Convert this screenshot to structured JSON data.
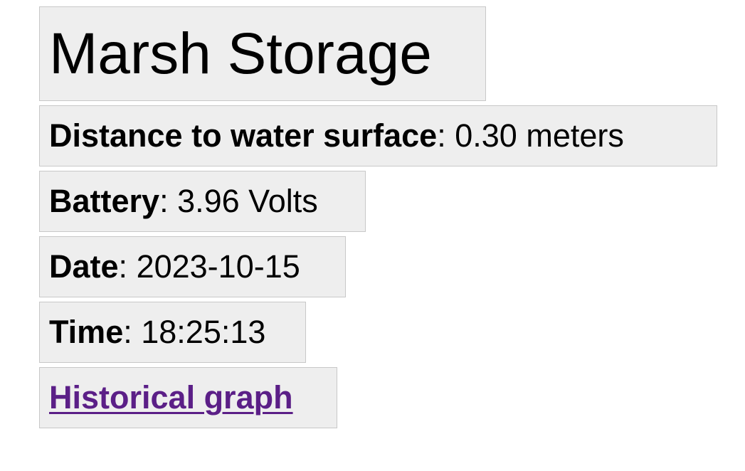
{
  "title": "Marsh Storage",
  "readings": {
    "distance": {
      "label": "Distance to water surface",
      "separator": ":",
      "value": "0.30 meters"
    },
    "battery": {
      "label": "Battery",
      "separator": ":",
      "value": "3.96 Volts"
    },
    "date": {
      "label": "Date",
      "separator": ":",
      "value": "2023-10-15"
    },
    "time": {
      "label": "Time",
      "separator": ":",
      "value": "18:25:13"
    }
  },
  "link": {
    "label": "Historical graph"
  },
  "colors": {
    "card_background": "#eeeeee",
    "card_border": "#c8c8c8",
    "link": "#5b1f87"
  }
}
